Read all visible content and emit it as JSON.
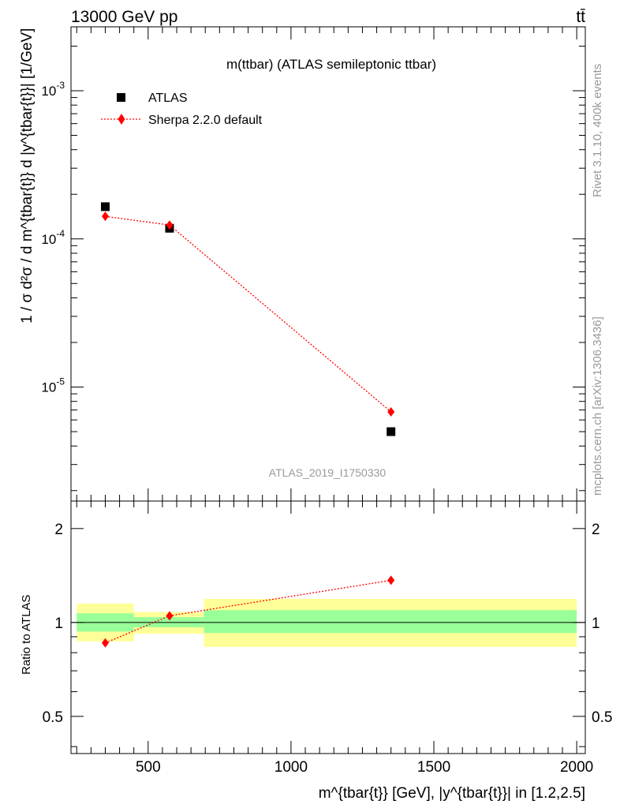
{
  "header": {
    "energy_label": "13000 GeV pp",
    "process_label": "tt̄"
  },
  "side_labels": {
    "rivet": "Rivet 3.1.10,  400k events",
    "mcplots": "mcplots.cern.ch [arXiv:1306.3436]"
  },
  "chart_data": [
    {
      "type": "scatter",
      "title": "m(ttbar) (ATLAS semileptonic ttbar)",
      "ylabel": "1 / σ d²σ / d m^{tbar{t}} d |y^{tbar{t}}| [1/GeV]",
      "yscale": "log",
      "xlim": [
        230,
        2030
      ],
      "ylim": [
        1.7e-06,
        0.0027
      ],
      "watermark": "ATLAS_2019_I1750330",
      "legend_position": "top-left",
      "series": [
        {
          "name": "ATLAS",
          "marker": "square",
          "color": "#000000",
          "x": [
            350,
            575,
            1350
          ],
          "y": [
            0.000165,
            0.000118,
            5e-06
          ]
        },
        {
          "name": "Sherpa 2.2.0 default",
          "marker": "diamond",
          "line": "dotted",
          "color": "#ff0000",
          "x": [
            350,
            575,
            1350
          ],
          "y": [
            0.000142,
            0.000124,
            6.8e-06
          ]
        }
      ]
    },
    {
      "type": "scatter",
      "ylabel": "Ratio to ATLAS",
      "yscale": "log",
      "xlabel": "m^{tbar{t}} [GeV], |y^{tbar{t}}| in [1.2,2.5]",
      "xlim": [
        230,
        2030
      ],
      "ylim": [
        0.38,
        2.45
      ],
      "xticks": [
        500,
        1000,
        1500,
        2000
      ],
      "yticks": [
        0.5,
        1,
        2
      ],
      "reference_line": 1,
      "bins": [
        {
          "x_low": 250,
          "x_high": 450,
          "green_low": 0.935,
          "green_high": 1.07,
          "yellow_low": 0.87,
          "yellow_high": 1.15
        },
        {
          "x_low": 450,
          "x_high": 695,
          "green_low": 0.965,
          "green_high": 1.04,
          "yellow_low": 0.92,
          "yellow_high": 1.08
        },
        {
          "x_low": 695,
          "x_high": 2000,
          "green_low": 0.925,
          "green_high": 1.095,
          "yellow_low": 0.835,
          "yellow_high": 1.19
        }
      ],
      "series": [
        {
          "name": "Sherpa 2.2.0 default",
          "marker": "diamond",
          "line": "dotted",
          "color": "#ff0000",
          "x": [
            350,
            575,
            1350
          ],
          "y": [
            0.86,
            1.05,
            1.365
          ]
        }
      ]
    }
  ]
}
